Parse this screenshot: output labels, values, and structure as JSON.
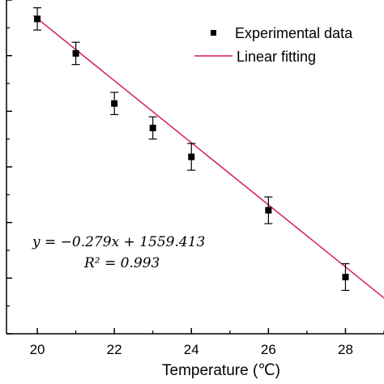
{
  "chart_data": {
    "type": "scatter",
    "xlabel": "Temperature (℃)",
    "ylabel": "",
    "x_ticks": [
      20,
      22,
      24,
      26,
      28
    ],
    "xlim": [
      19.2,
      29.0
    ],
    "ylim": [
      1551.0,
      1554.0
    ],
    "series": [
      {
        "name": "Experimental data",
        "kind": "points",
        "x": [
          20,
          21,
          22,
          23,
          24,
          26,
          28
        ],
        "y": [
          1553.83,
          1553.52,
          1553.07,
          1552.85,
          1552.59,
          1552.11,
          1551.51
        ],
        "err": [
          0.1,
          0.1,
          0.1,
          0.1,
          0.12,
          0.12,
          0.12
        ]
      },
      {
        "name": "Linear fitting",
        "kind": "line",
        "slope": -0.279,
        "intercept": 1559.413
      }
    ],
    "legend_position": "top-right",
    "annotations": {
      "equation": "y = −0.279x + 1559.413",
      "r_squared": "R² = 0.993"
    },
    "colors": {
      "points": "#000000",
      "fit_line": "#d6204a"
    }
  }
}
